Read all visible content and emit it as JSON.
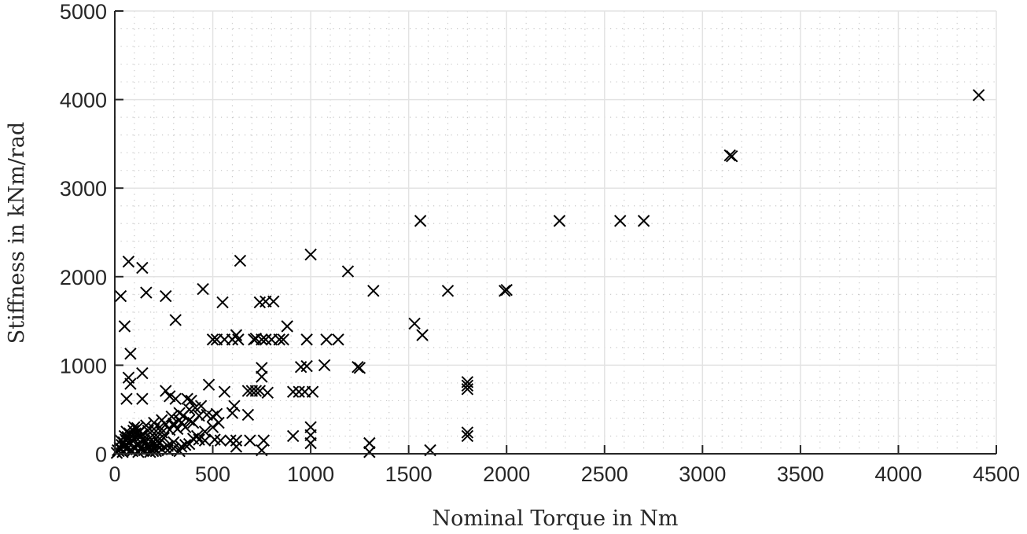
{
  "chart_data": {
    "type": "scatter",
    "title": "",
    "xlabel": "Nominal Torque in Nm",
    "ylabel": "Stiffness in kNm/rad",
    "xlim": [
      0,
      4500
    ],
    "ylim": [
      0,
      5000
    ],
    "xticks": [
      0,
      500,
      1000,
      1500,
      2000,
      2500,
      3000,
      3500,
      4000,
      4500
    ],
    "yticks": [
      0,
      1000,
      2000,
      3000,
      4000,
      5000
    ],
    "xtick_labels": [
      "0",
      "500",
      "1000",
      "1500",
      "2000",
      "2500",
      "3000",
      "3500",
      "4000",
      "4500"
    ],
    "ytick_labels": [
      "0",
      "1000",
      "2000",
      "3000",
      "4000",
      "5000"
    ],
    "grid": {
      "major": true,
      "minor": true,
      "x_minor_step": 100,
      "y_minor_step": 200
    },
    "marker": "x",
    "marker_color": "#000000",
    "legend": null,
    "series": [
      {
        "name": "Stiffness vs Nominal Torque",
        "points": [
          [
            4410,
            4050
          ],
          [
            3140,
            3370
          ],
          [
            3150,
            3360
          ],
          [
            1560,
            2630
          ],
          [
            2270,
            2630
          ],
          [
            2580,
            2630
          ],
          [
            2700,
            2630
          ],
          [
            1000,
            2250
          ],
          [
            640,
            2180
          ],
          [
            70,
            2170
          ],
          [
            140,
            2100
          ],
          [
            1190,
            2060
          ],
          [
            450,
            1860
          ],
          [
            1320,
            1840
          ],
          [
            1700,
            1840
          ],
          [
            1990,
            1840
          ],
          [
            2000,
            1850
          ],
          [
            160,
            1820
          ],
          [
            30,
            1780
          ],
          [
            260,
            1780
          ],
          [
            550,
            1710
          ],
          [
            770,
            1720
          ],
          [
            810,
            1720
          ],
          [
            740,
            1710
          ],
          [
            310,
            1510
          ],
          [
            1530,
            1470
          ],
          [
            50,
            1440
          ],
          [
            880,
            1440
          ],
          [
            1570,
            1340
          ],
          [
            80,
            1130
          ],
          [
            500,
            1290
          ],
          [
            520,
            1290
          ],
          [
            600,
            1290
          ],
          [
            630,
            1290
          ],
          [
            710,
            1290
          ],
          [
            750,
            1290
          ],
          [
            770,
            1290
          ],
          [
            800,
            1290
          ],
          [
            840,
            1290
          ],
          [
            980,
            1290
          ],
          [
            1080,
            1290
          ],
          [
            1140,
            1290
          ],
          [
            560,
            1290
          ],
          [
            620,
            1340
          ],
          [
            720,
            1300
          ],
          [
            860,
            1290
          ],
          [
            950,
            980
          ],
          [
            980,
            990
          ],
          [
            1070,
            1000
          ],
          [
            1240,
            980
          ],
          [
            1250,
            970
          ],
          [
            750,
            970
          ],
          [
            750,
            870
          ],
          [
            140,
            910
          ],
          [
            70,
            860
          ],
          [
            80,
            790
          ],
          [
            1800,
            810
          ],
          [
            1800,
            770
          ],
          [
            1800,
            730
          ],
          [
            480,
            780
          ],
          [
            560,
            700
          ],
          [
            680,
            710
          ],
          [
            700,
            710
          ],
          [
            720,
            710
          ],
          [
            740,
            710
          ],
          [
            780,
            690
          ],
          [
            910,
            700
          ],
          [
            940,
            700
          ],
          [
            970,
            700
          ],
          [
            1010,
            700
          ],
          [
            260,
            710
          ],
          [
            280,
            650
          ],
          [
            370,
            620
          ],
          [
            390,
            600
          ],
          [
            60,
            620
          ],
          [
            140,
            620
          ],
          [
            310,
            620
          ],
          [
            680,
            440
          ],
          [
            610,
            540
          ],
          [
            600,
            460
          ],
          [
            520,
            450
          ],
          [
            500,
            420
          ],
          [
            470,
            440
          ],
          [
            430,
            430
          ],
          [
            350,
            430
          ],
          [
            330,
            380
          ],
          [
            300,
            340
          ],
          [
            1000,
            300
          ],
          [
            1000,
            210
          ],
          [
            1000,
            120
          ],
          [
            910,
            200
          ],
          [
            1300,
            120
          ],
          [
            1300,
            20
          ],
          [
            1610,
            40
          ],
          [
            1800,
            240
          ],
          [
            1800,
            200
          ],
          [
            750,
            40
          ],
          [
            620,
            80
          ],
          [
            620,
            150
          ],
          [
            690,
            150
          ],
          [
            760,
            150
          ],
          [
            590,
            150
          ],
          [
            540,
            150
          ],
          [
            510,
            160
          ],
          [
            460,
            150
          ],
          [
            430,
            160
          ],
          [
            400,
            170
          ],
          [
            380,
            110
          ],
          [
            340,
            80
          ],
          [
            300,
            130
          ],
          [
            270,
            90
          ],
          [
            20,
            30
          ],
          [
            30,
            60
          ],
          [
            40,
            20
          ],
          [
            50,
            90
          ],
          [
            60,
            50
          ],
          [
            70,
            120
          ],
          [
            80,
            40
          ],
          [
            90,
            150
          ],
          [
            100,
            80
          ],
          [
            110,
            180
          ],
          [
            120,
            110
          ],
          [
            130,
            60
          ],
          [
            140,
            220
          ],
          [
            150,
            150
          ],
          [
            160,
            90
          ],
          [
            170,
            260
          ],
          [
            180,
            180
          ],
          [
            190,
            120
          ],
          [
            200,
            280
          ],
          [
            210,
            210
          ],
          [
            220,
            150
          ],
          [
            230,
            300
          ],
          [
            240,
            240
          ],
          [
            250,
            180
          ],
          [
            260,
            330
          ],
          [
            280,
            270
          ],
          [
            300,
            320
          ],
          [
            320,
            280
          ],
          [
            340,
            350
          ],
          [
            360,
            300
          ],
          [
            380,
            380
          ],
          [
            400,
            350
          ],
          [
            10,
            10
          ],
          [
            15,
            40
          ],
          [
            25,
            70
          ],
          [
            35,
            100
          ],
          [
            45,
            130
          ],
          [
            55,
            160
          ],
          [
            65,
            190
          ],
          [
            75,
            230
          ],
          [
            85,
            200
          ],
          [
            95,
            260
          ],
          [
            105,
            230
          ],
          [
            115,
            290
          ],
          [
            125,
            250
          ],
          [
            135,
            200
          ],
          [
            145,
            170
          ],
          [
            155,
            130
          ],
          [
            165,
            100
          ],
          [
            175,
            70
          ],
          [
            185,
            50
          ],
          [
            195,
            30
          ],
          [
            205,
            60
          ],
          [
            215,
            90
          ],
          [
            225,
            120
          ],
          [
            60,
            250
          ],
          [
            100,
            300
          ],
          [
            160,
            320
          ],
          [
            200,
            350
          ],
          [
            240,
            380
          ],
          [
            290,
            420
          ],
          [
            330,
            460
          ],
          [
            380,
            500
          ],
          [
            410,
            520
          ],
          [
            440,
            540
          ],
          [
            30,
            150
          ],
          [
            50,
            200
          ],
          [
            90,
            30
          ],
          [
            120,
            20
          ],
          [
            150,
            40
          ],
          [
            180,
            20
          ],
          [
            210,
            30
          ],
          [
            240,
            50
          ],
          [
            270,
            40
          ],
          [
            300,
            60
          ],
          [
            330,
            30
          ],
          [
            360,
            100
          ],
          [
            420,
            200
          ],
          [
            460,
            250
          ],
          [
            500,
            300
          ],
          [
            530,
            350
          ]
        ]
      }
    ]
  }
}
